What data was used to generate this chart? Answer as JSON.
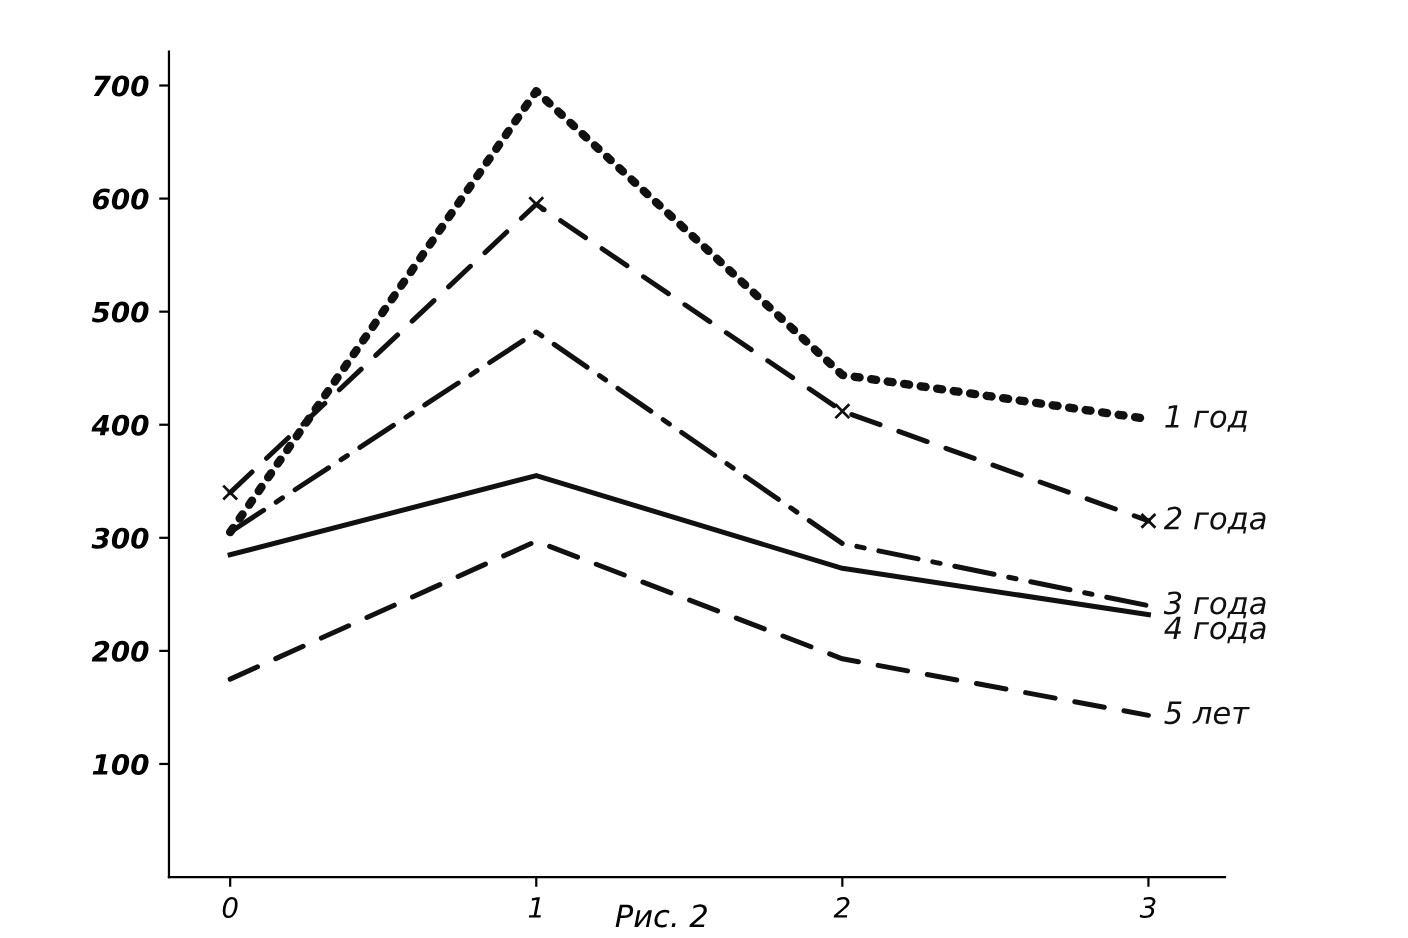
{
  "chart_data": {
    "type": "line",
    "x": [
      0,
      1,
      2,
      3
    ],
    "xlim": [
      -0.2,
      3.25
    ],
    "xticks": [
      0,
      1,
      2,
      3
    ],
    "ylim": [
      0,
      730
    ],
    "yticks": [
      100,
      200,
      300,
      400,
      500,
      600,
      700
    ],
    "grid": false,
    "legend": false,
    "series": [
      {
        "name": "1 год",
        "color": "#111111",
        "line_style": "dotted",
        "marker": "none",
        "values": [
          305,
          695,
          444,
          405
        ]
      },
      {
        "name": "2 года",
        "color": "#111111",
        "line_style": "dashed",
        "marker": "cross",
        "values": [
          340,
          595,
          412,
          315
        ]
      },
      {
        "name": "3 года",
        "color": "#111111",
        "line_style": "dashdot",
        "marker": "none",
        "values": [
          305,
          482,
          295,
          240
        ]
      },
      {
        "name": "4 года",
        "color": "#111111",
        "line_style": "solid",
        "marker": "none",
        "values": [
          285,
          355,
          273,
          232
        ]
      },
      {
        "name": "5 лет",
        "color": "#111111",
        "line_style": "dashed",
        "marker": "none",
        "values": [
          175,
          297,
          193,
          143
        ]
      }
    ],
    "annotations": [
      "Рис. 2"
    ]
  }
}
